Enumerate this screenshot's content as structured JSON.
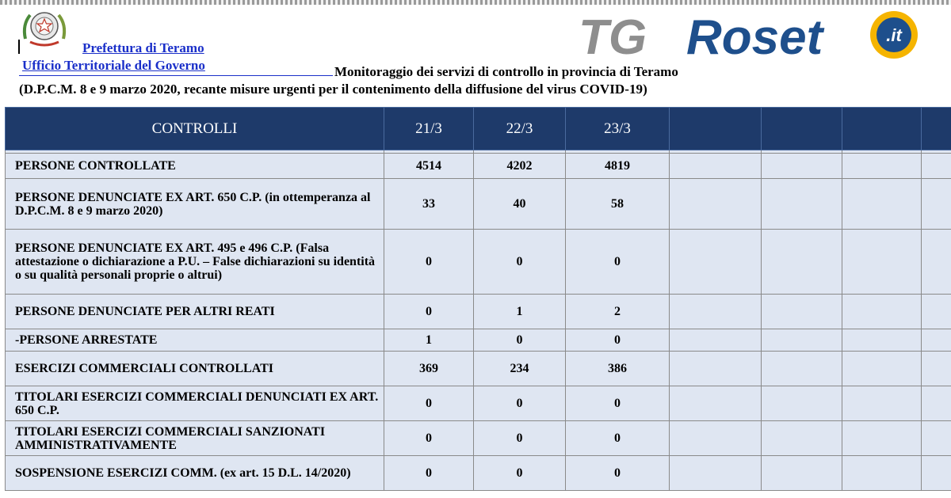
{
  "header": {
    "prefecture": "Prefettura di Teramo",
    "office": "Ufficio Territoriale del Governo",
    "subtitle": "Monitoraggio dei servizi di controllo in provincia di Teramo",
    "decree": "(D.P.C.M. 8 e 9 marzo 2020, recante misure urgenti per il contenimento della diffusione del virus COVID-19)"
  },
  "logo": {
    "tg": "TG",
    "roset": "Roset",
    "o": "o",
    "it": ".it",
    "colors": {
      "tg": "#8e8e8e",
      "roset": "#1e4f8c",
      "o_ring": "#f5b400",
      "it_bg": "#1e4f8c"
    }
  },
  "table": {
    "columns": [
      "CONTROLLI",
      "21/3",
      "22/3",
      "23/3",
      "",
      "",
      "",
      ""
    ],
    "rows": [
      {
        "label": "PERSONE CONTROLLATE",
        "values": [
          "4514",
          "4202",
          "4819"
        ]
      },
      {
        "label": "PERSONE DENUNCIATE EX ART. 650 C.P. (in ottemperanza al D.P.C.M. 8 e 9 marzo 2020)",
        "values": [
          "33",
          "40",
          "58"
        ]
      },
      {
        "label": "PERSONE DENUNCIATE EX ART. 495 e 496 C.P. (Falsa attestazione o dichiarazione a P.U. – False dichiarazioni su identità o su qualità personali proprie o altrui)",
        "values": [
          "0",
          "0",
          "0"
        ]
      },
      {
        "label": "PERSONE DENUNCIATE PER ALTRI REATI",
        "values": [
          "0",
          "1",
          "2"
        ]
      },
      {
        "label": "-PERSONE ARRESTATE",
        "values": [
          "1",
          "0",
          "0"
        ]
      },
      {
        "label": "ESERCIZI COMMERCIALI CONTROLLATI",
        "values": [
          "369",
          "234",
          "386"
        ]
      },
      {
        "label": "TITOLARI ESERCIZI COMMERCIALI DENUNCIATI EX ART. 650 C.P.",
        "values": [
          "0",
          "0",
          "0"
        ]
      },
      {
        "label": "TITOLARI ESERCIZI COMMERCIALI SANZIONATI AMMINISTRATIVAMENTE",
        "values": [
          "0",
          "0",
          "0"
        ]
      },
      {
        "label": "SOSPENSIONE ESERCIZI COMM. (ex art. 15 D.L. 14/2020)",
        "values": [
          "0",
          "0",
          "0"
        ]
      }
    ]
  },
  "colors": {
    "header_bg": "#1e3a6a",
    "cell_bg": "#dfe6f2",
    "link": "#1a2fc9"
  }
}
